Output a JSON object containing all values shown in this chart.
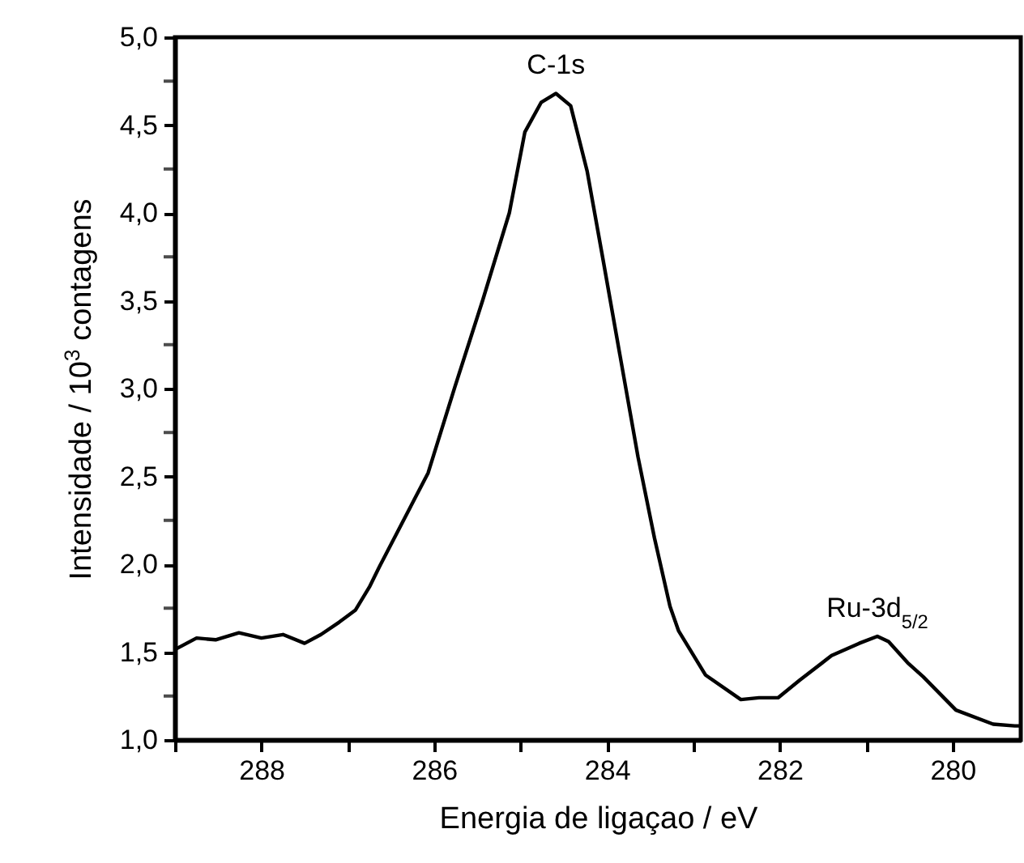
{
  "chart_data": {
    "type": "line",
    "xlabel": "Energia de ligaçao / eV",
    "ylabel": "Intensidade / 10$^{3}$ contagens",
    "x": [
      288.98,
      288.75,
      288.53,
      288.26,
      288.0,
      287.75,
      287.5,
      287.31,
      287.1,
      286.91,
      286.75,
      286.63,
      286.07,
      285.76,
      285.44,
      285.13,
      284.95,
      284.76,
      284.59,
      284.42,
      284.23,
      284.04,
      283.86,
      283.64,
      283.45,
      283.27,
      283.17,
      282.86,
      282.45,
      282.24,
      282.02,
      281.77,
      281.4,
      281.08,
      280.87,
      280.74,
      280.52,
      280.34,
      279.96,
      279.53,
      279.28,
      279.21
    ],
    "series": [
      {
        "color": "#000000",
        "values": [
          1.52,
          1.58,
          1.57,
          1.61,
          1.58,
          1.6,
          1.55,
          1.6,
          1.67,
          1.74,
          1.87,
          1.99,
          2.52,
          3.01,
          3.5,
          4.0,
          4.46,
          4.63,
          4.68,
          4.61,
          4.24,
          3.72,
          3.22,
          2.61,
          2.15,
          1.76,
          1.62,
          1.37,
          1.23,
          1.24,
          1.24,
          1.34,
          1.48,
          1.55,
          1.59,
          1.56,
          1.44,
          1.36,
          1.17,
          1.09,
          1.08,
          1.08
        ]
      }
    ],
    "xlim": [
      289.0,
      279.21
    ],
    "xticks": [
      {
        "value": 289,
        "label": null
      },
      288,
      {
        "value": 287,
        "label": null
      },
      286,
      {
        "value": 285,
        "label": null
      },
      284,
      {
        "value": 283,
        "label": null
      },
      282,
      {
        "value": 281,
        "label": null
      },
      280
    ],
    "ylim": [
      1.0,
      5.0
    ],
    "yticks": [
      {
        "value": 1.0,
        "label": "1,0"
      },
      {
        "value": 1.25,
        "label": null
      },
      {
        "value": 1.5,
        "label": "1,5"
      },
      {
        "value": 1.75,
        "label": null
      },
      {
        "value": 2.0,
        "label": "2,0"
      },
      {
        "value": 2.25,
        "label": null
      },
      {
        "value": 2.5,
        "label": "2,5"
      },
      {
        "value": 2.75,
        "label": null
      },
      {
        "value": 3.0,
        "label": "3,0"
      },
      {
        "value": 3.25,
        "label": null
      },
      {
        "value": 3.5,
        "label": "3,5"
      },
      {
        "value": 3.75,
        "label": null
      },
      {
        "value": 4.0,
        "label": "4,0"
      },
      {
        "value": 4.25,
        "label": null
      },
      {
        "value": 4.5,
        "label": "4,5"
      },
      {
        "value": 4.75,
        "label": null
      },
      {
        "value": 5.0,
        "label": "5,0"
      }
    ],
    "annotations": [
      {
        "text": "C-1s",
        "x": 284.59,
        "y": 4.68
      },
      {
        "text": "Ru-3d$_{5/2}$",
        "x": 280.87,
        "y": 1.59
      }
    ],
    "grid": false,
    "marker": "none",
    "line_style": "solid"
  }
}
